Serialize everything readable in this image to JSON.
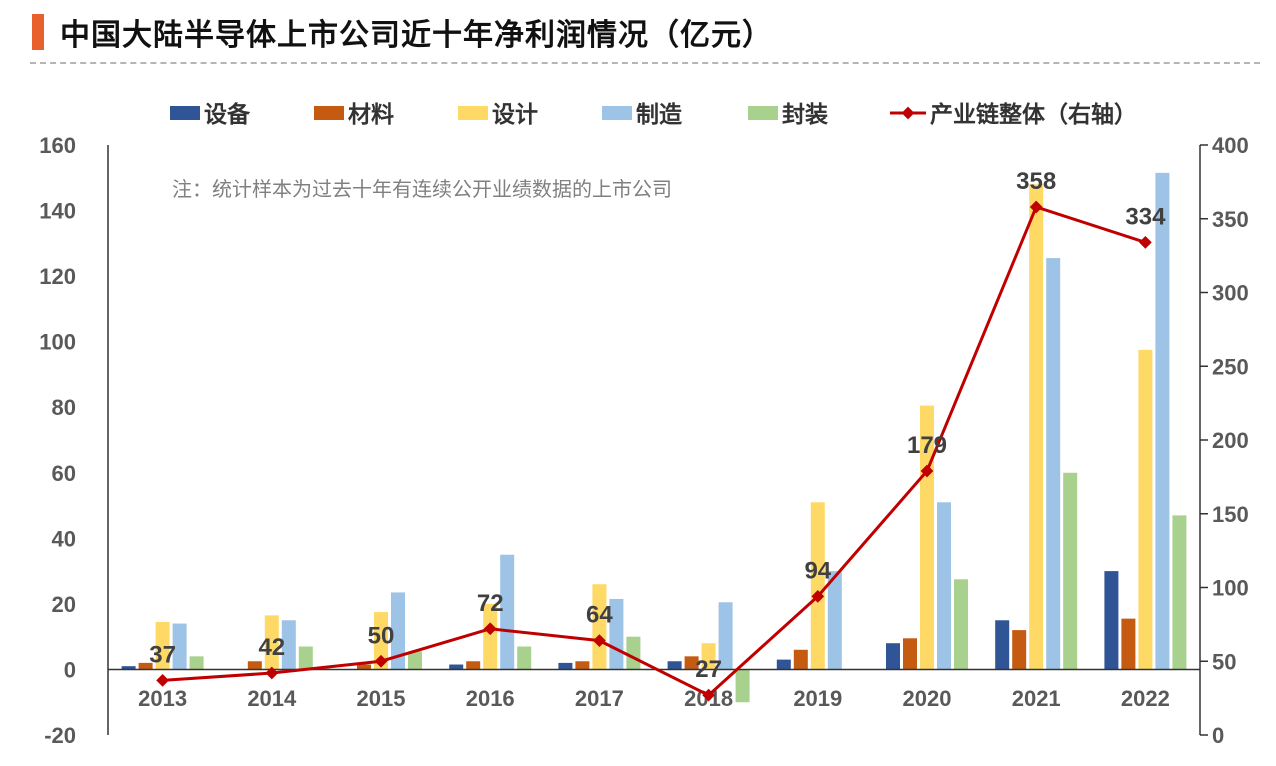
{
  "title": "中国大陆半导体上市公司近十年净利润情况（亿元）",
  "colors": {
    "title_bar": "#E8612C",
    "line": "#C00000",
    "axis": "#333333",
    "tick_text": "#595959"
  },
  "chart_data": {
    "type": "bar",
    "categories": [
      "2013",
      "2014",
      "2015",
      "2016",
      "2017",
      "2018",
      "2019",
      "2020",
      "2021",
      "2022"
    ],
    "note": "注：统计样本为过去十年有连续公开业绩数据的上市公司",
    "y_left": {
      "ticks": [
        "160",
        "140",
        "120",
        "100",
        "80",
        "60",
        "40",
        "20",
        "0",
        "-20"
      ],
      "ylim": [
        -20,
        160
      ]
    },
    "y_right": {
      "ticks": [
        "400",
        "350",
        "300",
        "250",
        "200",
        "150",
        "100",
        "50",
        "0"
      ],
      "ylim": [
        0,
        400
      ]
    },
    "series": [
      {
        "name": "设备",
        "type": "bar",
        "axis": "left",
        "color": "#2F5597",
        "values": [
          1,
          0,
          0,
          1.5,
          2,
          2.5,
          3,
          8,
          15,
          30
        ]
      },
      {
        "name": "材料",
        "type": "bar",
        "axis": "left",
        "color": "#C55A11",
        "values": [
          2,
          2.5,
          1.5,
          2.5,
          2.5,
          4,
          6,
          9.5,
          12,
          15.5
        ]
      },
      {
        "name": "设计",
        "type": "bar",
        "axis": "left",
        "color": "#FFD966",
        "values": [
          14.5,
          16.5,
          17.5,
          20,
          26,
          8,
          51,
          80.5,
          148,
          97.5
        ]
      },
      {
        "name": "制造",
        "type": "bar",
        "axis": "left",
        "color": "#9DC3E6",
        "values": [
          14,
          15,
          23.5,
          35,
          21.5,
          20.5,
          30,
          51,
          125.5,
          151.5
        ]
      },
      {
        "name": "封装",
        "type": "bar",
        "axis": "left",
        "color": "#A9D18E",
        "values": [
          4,
          7,
          5.5,
          7,
          10,
          -10,
          0,
          27.5,
          60,
          47
        ]
      },
      {
        "name": "产业链整体（右轴）",
        "type": "line",
        "axis": "right",
        "color": "#C00000",
        "values": [
          37,
          42,
          50,
          72,
          64,
          27,
          94,
          179,
          358,
          334
        ],
        "labels": [
          "37",
          "42",
          "50",
          "72",
          "64",
          "27",
          "94",
          "179",
          "358",
          "334"
        ]
      }
    ]
  }
}
